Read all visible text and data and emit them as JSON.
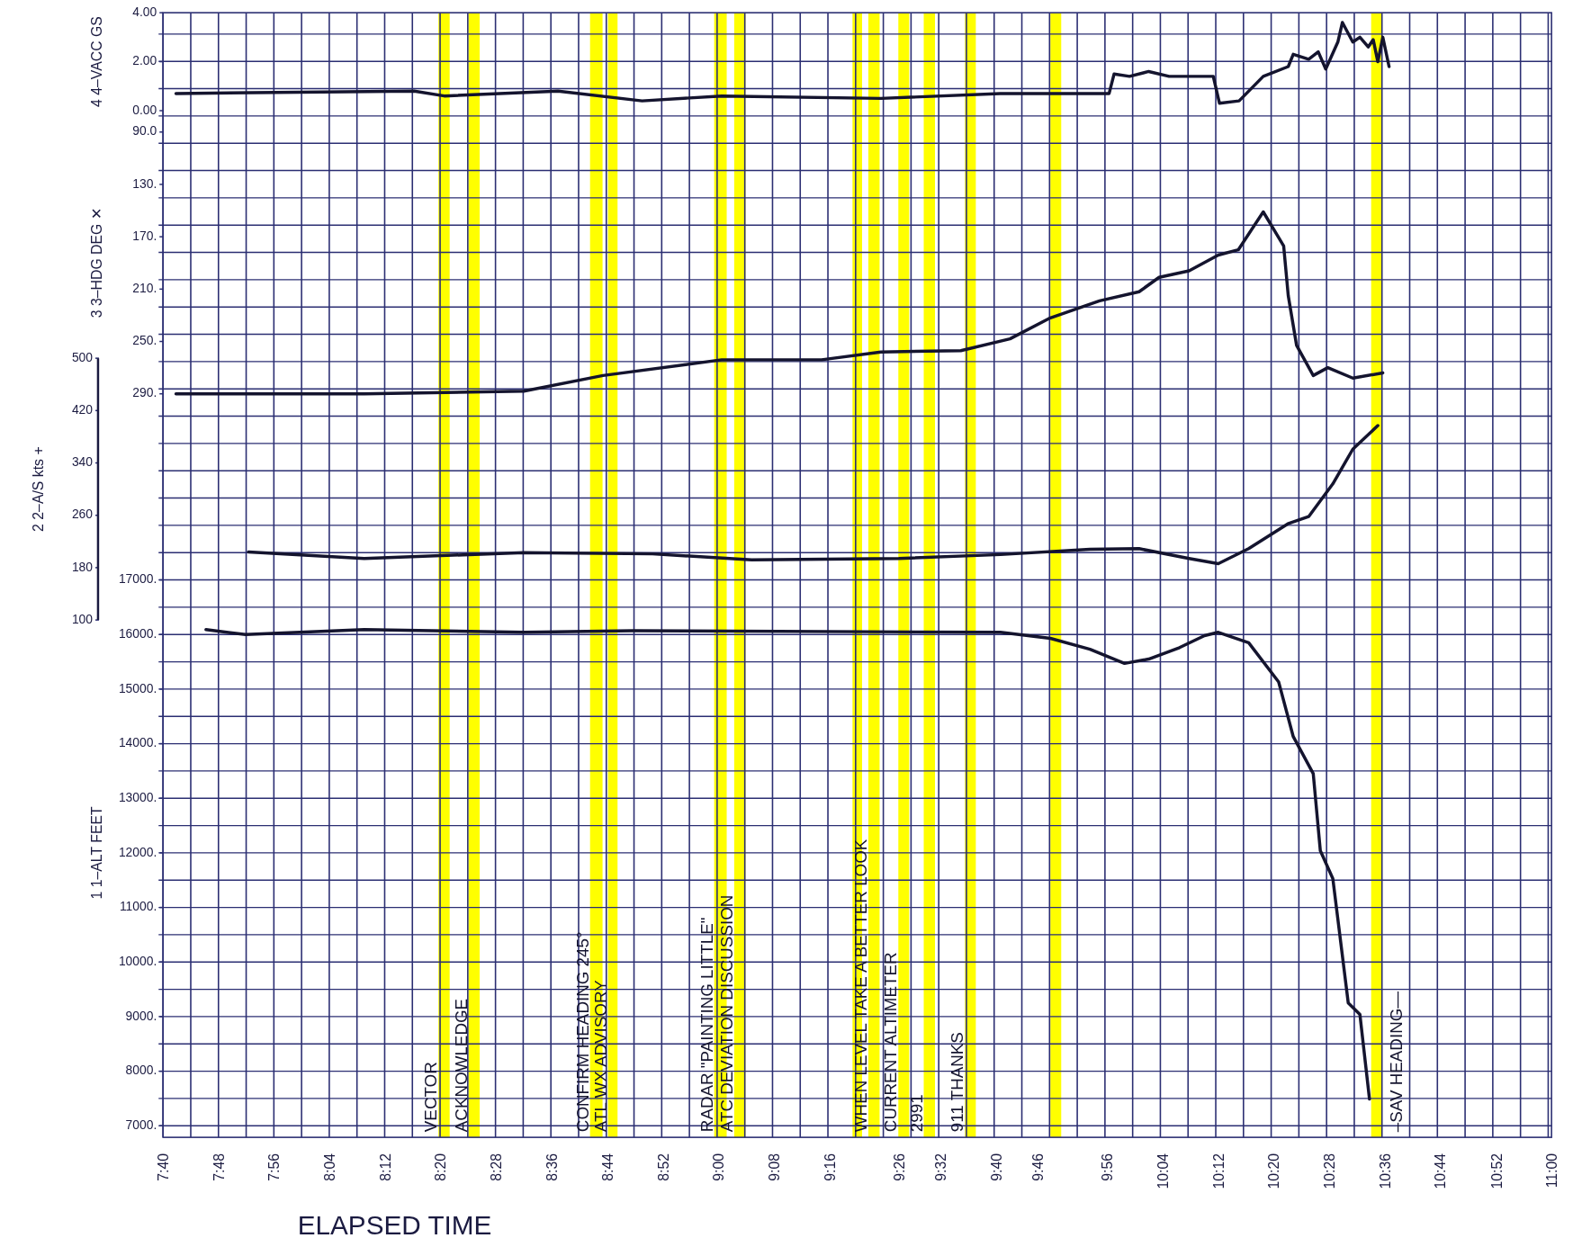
{
  "chart_data": [
    {
      "type": "line",
      "ylabel": "4 4–VACC GS",
      "tick_labels": "y",
      "xlim": [
        7.667,
        11
      ],
      "ylim": [
        0,
        4
      ],
      "yticks": [
        {
          "value": 0,
          "label": "0.00"
        },
        {
          "value": 2,
          "label": "2.00"
        },
        {
          "value": 4,
          "label": "4.00"
        }
      ],
      "series": [
        {
          "color": "#14142e",
          "x": [
            7.698,
            8.27,
            8.342,
            8.615,
            8.817,
            9.008,
            9.39,
            9.677,
            9.938,
            9.95,
            9.987,
            10.033,
            10.082,
            10.188,
            10.203,
            10.25,
            10.308,
            10.368,
            10.38,
            10.417,
            10.44,
            10.458,
            10.487,
            10.498,
            10.523,
            10.54,
            10.56,
            10.572,
            10.583,
            10.595,
            10.61
          ],
          "values": [
            0.7,
            0.8,
            0.6,
            0.8,
            0.4,
            0.6,
            0.5,
            0.7,
            0.7,
            1.5,
            1.4,
            1.6,
            1.4,
            1.4,
            0.3,
            0.4,
            1.4,
            1.8,
            2.3,
            2.1,
            2.4,
            1.7,
            2.8,
            3.6,
            2.8,
            3.0,
            2.6,
            2.9,
            2.0,
            3.0,
            1.8
          ]
        }
      ]
    },
    {
      "type": "line",
      "ylabel": "3 3–HDG DEG ✕",
      "tick_labels": "y",
      "xlim": [
        7.667,
        11
      ],
      "ylim": [
        290,
        90
      ],
      "yticks": [
        {
          "value": 90,
          "label": "90.0"
        },
        {
          "value": 130,
          "label": "130."
        },
        {
          "value": 170,
          "label": "170."
        },
        {
          "value": 210,
          "label": "210."
        },
        {
          "value": 250,
          "label": "250."
        },
        {
          "value": 290,
          "label": "290."
        }
      ],
      "series": [
        {
          "color": "#14142e",
          "x": [
            7.698,
            7.877,
            8.15,
            8.533,
            8.723,
            9.008,
            9.248,
            9.39,
            9.582,
            9.7,
            9.797,
            9.915,
            10.01,
            10.058,
            10.13,
            10.2,
            10.248,
            10.308,
            10.357,
            10.368,
            10.388,
            10.428,
            10.463,
            10.523,
            10.595
          ],
          "values": [
            290,
            290,
            290,
            288,
            276,
            264,
            264,
            258,
            257,
            248,
            232,
            219,
            212,
            201,
            196,
            184,
            180,
            151,
            177,
            215,
            253,
            276,
            270,
            278,
            274
          ]
        }
      ]
    },
    {
      "type": "line",
      "ylabel": "2 2–A/S kts +",
      "tick_labels": "y",
      "xlim": [
        7.667,
        11
      ],
      "ylim": [
        100,
        500
      ],
      "yticks": [
        100,
        180,
        260,
        340,
        420,
        500
      ],
      "series": [
        {
          "color": "#14142e",
          "x": [
            7.872,
            8.15,
            8.533,
            8.842,
            9.08,
            9.433,
            9.677,
            9.892,
            10.01,
            10.13,
            10.2,
            10.273,
            10.367,
            10.417,
            10.475,
            10.523,
            10.583
          ],
          "values": [
            204,
            194,
            203,
            201,
            192,
            194,
            200,
            208,
            209,
            194,
            186,
            209,
            247,
            258,
            308,
            361,
            397
          ]
        }
      ]
    },
    {
      "type": "line",
      "ylabel": "1 1–ALT FEET",
      "xlabel": "ELAPSED TIME",
      "grid": true,
      "xlim": [
        7.667,
        11
      ],
      "xticks": [
        {
          "value": 7.667,
          "label": "7:40"
        },
        {
          "value": 7.8,
          "label": "7:48"
        },
        {
          "value": 7.933,
          "label": "7:56"
        },
        {
          "value": 8.067,
          "label": "8:04"
        },
        {
          "value": 8.2,
          "label": "8:12"
        },
        {
          "value": 8.333,
          "label": "8:20"
        },
        {
          "value": 8.467,
          "label": "8:28"
        },
        {
          "value": 8.6,
          "label": "8:36"
        },
        {
          "value": 8.733,
          "label": "8:44"
        },
        {
          "value": 8.867,
          "label": "8:52"
        },
        {
          "value": 9,
          "label": "9:00"
        },
        {
          "value": 9.133,
          "label": "9:08"
        },
        {
          "value": 9.267,
          "label": "9:16"
        },
        {
          "value": 9.433,
          "label": "9:26"
        },
        {
          "value": 9.533,
          "label": "9:32"
        },
        {
          "value": 9.667,
          "label": "9:40"
        },
        {
          "value": 9.767,
          "label": "9:46"
        },
        {
          "value": 9.933,
          "label": "9:56"
        },
        {
          "value": 10.067,
          "label": "10:04"
        },
        {
          "value": 10.2,
          "label": "10:12"
        },
        {
          "value": 10.333,
          "label": "10:20"
        },
        {
          "value": 10.467,
          "label": "10:28"
        },
        {
          "value": 10.6,
          "label": "10:36"
        },
        {
          "value": 10.733,
          "label": "10:44"
        },
        {
          "value": 10.867,
          "label": "10:52"
        },
        {
          "value": 11,
          "label": "11:00"
        }
      ],
      "ylim": [
        7000,
        17000
      ],
      "yticks": [
        {
          "value": 7000,
          "label": "7000."
        },
        {
          "value": 8000,
          "label": "8000."
        },
        {
          "value": 9000,
          "label": "9000."
        },
        {
          "value": 10000,
          "label": "10000."
        },
        {
          "value": 11000,
          "label": "11000."
        },
        {
          "value": 12000,
          "label": "12000."
        },
        {
          "value": 13000,
          "label": "13000."
        },
        {
          "value": 14000,
          "label": "14000."
        },
        {
          "value": 15000,
          "label": "15000."
        },
        {
          "value": 16000,
          "label": "16000."
        },
        {
          "value": 17000,
          "label": "17000."
        }
      ],
      "series": [
        {
          "color": "#14142e",
          "x": [
            7.77,
            7.865,
            8.15,
            8.533,
            8.795,
            9.677,
            9.797,
            9.892,
            9.975,
            10.033,
            10.107,
            10.167,
            10.2,
            10.273,
            10.345,
            10.38,
            10.428,
            10.445,
            10.475,
            10.512,
            10.54,
            10.563
          ],
          "values": [
            16090,
            16000,
            16090,
            16040,
            16070,
            16040,
            15930,
            15730,
            15470,
            15550,
            15760,
            15980,
            16040,
            15850,
            15130,
            14130,
            13450,
            12040,
            11530,
            9250,
            9040,
            7490
          ]
        }
      ],
      "bands": [
        {
          "axis": "x",
          "from": 8.328,
          "to": 8.355,
          "color": "#ffff00",
          "label": "VECTOR"
        },
        {
          "axis": "x",
          "from": 8.4,
          "to": 8.427,
          "color": "#ffff00",
          "label": "ACKNOWLEDGE"
        },
        {
          "axis": "x",
          "from": 8.692,
          "to": 8.722,
          "color": "#ffff00",
          "label": "CONFIRM HEADING 245°"
        },
        {
          "axis": "x",
          "from": 8.735,
          "to": 8.758,
          "color": "#ffff00",
          "label": "ATL WX ADVISORY"
        },
        {
          "axis": "x",
          "from": 8.99,
          "to": 9.02,
          "color": "#ffff00",
          "label": "RADAR \"PAINTING LITTLE\""
        },
        {
          "axis": "x",
          "from": 9.038,
          "to": 9.065,
          "color": "#ffff00",
          "label": "ATC DEVIATION DISCUSSION"
        },
        {
          "axis": "x",
          "from": 9.322,
          "to": 9.345,
          "color": "#ffff00"
        },
        {
          "axis": "x",
          "from": 9.36,
          "to": 9.387,
          "color": "#ffff00",
          "label": "WHEN LEVEL TAKE A BETTER LOOK"
        },
        {
          "axis": "x",
          "from": 9.432,
          "to": 9.458,
          "color": "#ffff00",
          "label": "CURRENT ALTIMETER"
        },
        {
          "axis": "x",
          "from": 9.493,
          "to": 9.52,
          "color": "#ffff00",
          "label": "2991"
        },
        {
          "axis": "x",
          "from": 9.592,
          "to": 9.618,
          "color": "#ffff00",
          "label": "911 THANKS"
        },
        {
          "axis": "x",
          "from": 9.797,
          "to": 9.823,
          "color": "#ffff00"
        },
        {
          "axis": "x",
          "from": 10.567,
          "to": 10.593,
          "color": "#ffff00",
          "label": "–SAV HEADING—"
        }
      ]
    }
  ]
}
